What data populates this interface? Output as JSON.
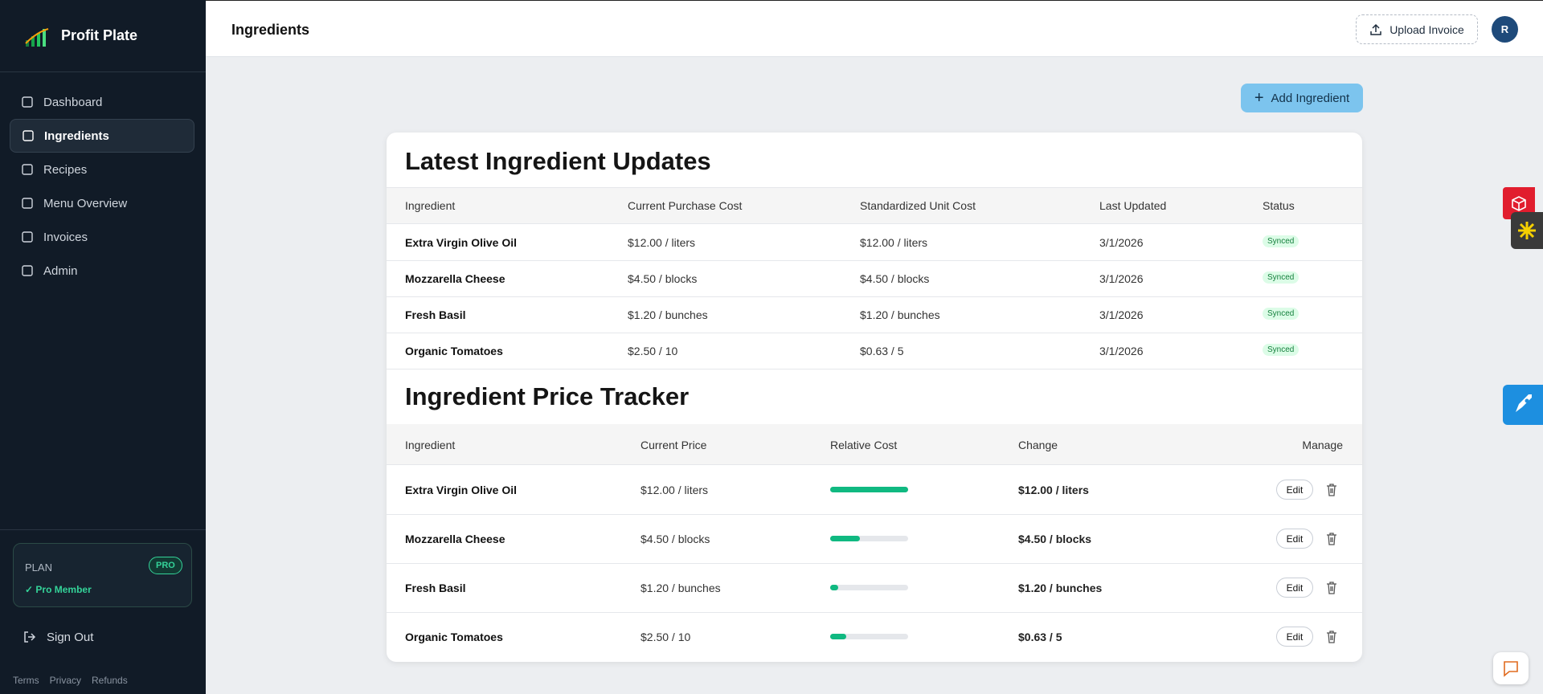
{
  "sidebar": {
    "brand": "Profit Plate",
    "nav": [
      "Dashboard",
      "Ingredients",
      "Recipes",
      "Menu Overview",
      "Invoices",
      "Admin"
    ],
    "plan": {
      "label": "PLAN",
      "badge": "PRO",
      "status": "✓ Pro Member"
    },
    "sign_out": "Sign Out",
    "footer_links": [
      "Terms",
      "Privacy",
      "Refunds"
    ]
  },
  "header": {
    "title": "Ingredients",
    "upload_button": "Upload Invoice",
    "avatar": "R"
  },
  "add_button": "Add Ingredient",
  "updates": {
    "title": "Latest Ingredient Updates",
    "columns": [
      "Ingredient",
      "Current Purchase Cost",
      "Standardized Unit Cost",
      "Last Updated",
      "Status"
    ],
    "rows": [
      [
        "Extra Virgin Olive Oil",
        "$12.00 / liters",
        "$12.00 / liters",
        "3/1/2026",
        "Synced"
      ],
      [
        "Mozzarella Cheese",
        "$4.50 / blocks",
        "$4.50 / blocks",
        "3/1/2026",
        "Synced"
      ],
      [
        "Fresh Basil",
        "$1.20 / bunches",
        "$1.20 / bunches",
        "3/1/2026",
        "Synced"
      ],
      [
        "Organic Tomatoes",
        "$2.50 / 10",
        "$0.63 / 5",
        "3/1/2026",
        "Synced"
      ]
    ]
  },
  "tracker": {
    "title": "Ingredient Price Tracker",
    "columns": [
      "Ingredient",
      "Current Price",
      "Relative Cost",
      "Change",
      "Manage"
    ],
    "edit_label": "Edit",
    "rows": [
      {
        "ingredient": "Extra Virgin Olive Oil",
        "current_price": "$12.00 / liters",
        "relative_cost": 100,
        "change": "$12.00 / liters"
      },
      {
        "ingredient": "Mozzarella Cheese",
        "current_price": "$4.50 / blocks",
        "relative_cost": 38,
        "change": "$4.50 / blocks"
      },
      {
        "ingredient": "Fresh Basil",
        "current_price": "$1.20 / bunches",
        "relative_cost": 10,
        "change": "$1.20 / bunches"
      },
      {
        "ingredient": "Organic Tomatoes",
        "current_price": "$2.50 / 10",
        "relative_cost": 21,
        "change": "$0.63 / 5"
      }
    ]
  }
}
